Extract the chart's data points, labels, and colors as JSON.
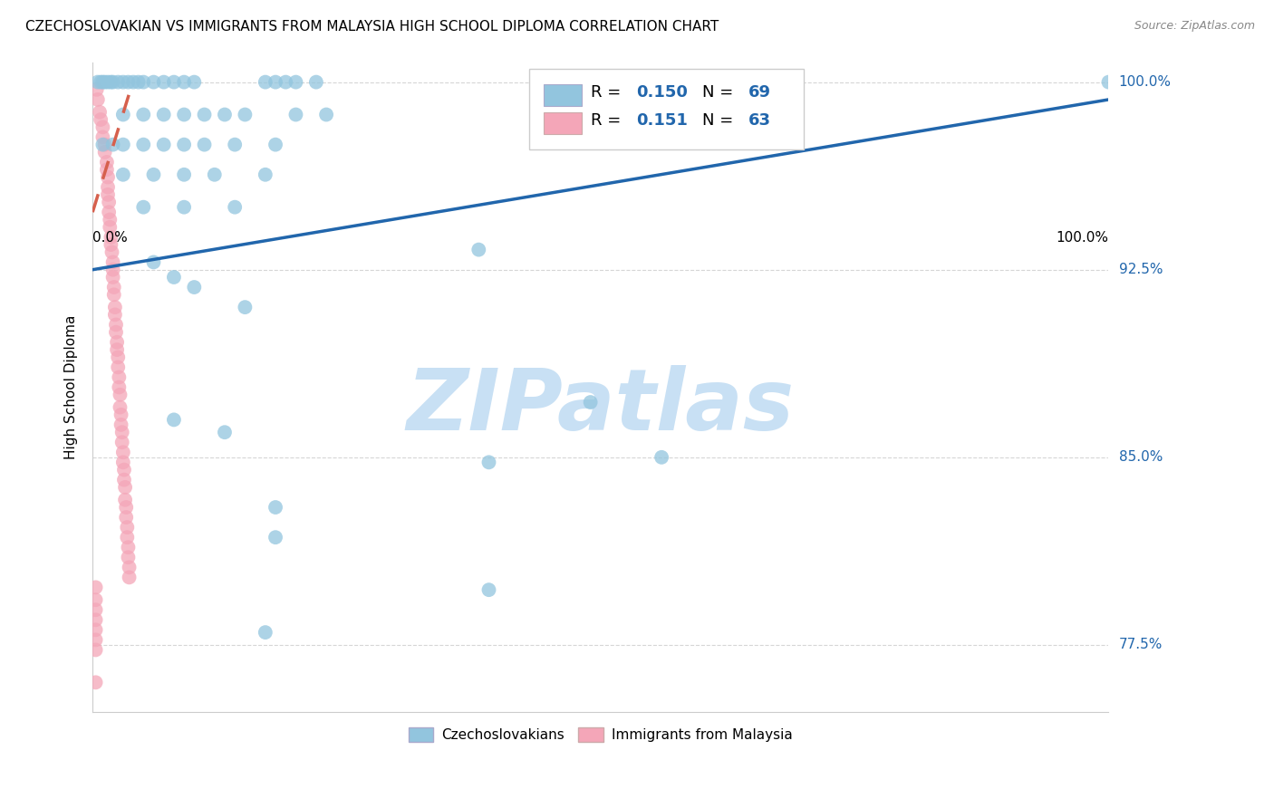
{
  "title": "CZECHOSLOVAKIAN VS IMMIGRANTS FROM MALAYSIA HIGH SCHOOL DIPLOMA CORRELATION CHART",
  "source": "Source: ZipAtlas.com",
  "ylabel": "High School Diploma",
  "ytick_labels": [
    "77.5%",
    "85.0%",
    "92.5%",
    "100.0%"
  ],
  "ytick_values": [
    0.775,
    0.85,
    0.925,
    1.0
  ],
  "legend_blue_label": "Czechoslovakians",
  "legend_pink_label": "Immigrants from Malaysia",
  "blue_color": "#92C5DE",
  "pink_color": "#F4A6B8",
  "trend_blue_color": "#2166AC",
  "trend_pink_color": "#D6604D",
  "watermark_text": "ZIPatlas",
  "watermark_color": "#C8E0F4",
  "blue_scatter": [
    [
      0.005,
      1.0
    ],
    [
      0.008,
      1.0
    ],
    [
      0.01,
      1.0
    ],
    [
      0.012,
      1.0
    ],
    [
      0.015,
      1.0
    ],
    [
      0.018,
      1.0
    ],
    [
      0.02,
      1.0
    ],
    [
      0.025,
      1.0
    ],
    [
      0.03,
      1.0
    ],
    [
      0.035,
      1.0
    ],
    [
      0.04,
      1.0
    ],
    [
      0.045,
      1.0
    ],
    [
      0.05,
      1.0
    ],
    [
      0.06,
      1.0
    ],
    [
      0.07,
      1.0
    ],
    [
      0.08,
      1.0
    ],
    [
      0.09,
      1.0
    ],
    [
      0.1,
      1.0
    ],
    [
      0.17,
      1.0
    ],
    [
      0.18,
      1.0
    ],
    [
      0.19,
      1.0
    ],
    [
      0.2,
      1.0
    ],
    [
      0.22,
      1.0
    ],
    [
      0.03,
      0.987
    ],
    [
      0.05,
      0.987
    ],
    [
      0.07,
      0.987
    ],
    [
      0.09,
      0.987
    ],
    [
      0.11,
      0.987
    ],
    [
      0.13,
      0.987
    ],
    [
      0.15,
      0.987
    ],
    [
      0.2,
      0.987
    ],
    [
      0.23,
      0.987
    ],
    [
      0.01,
      0.975
    ],
    [
      0.02,
      0.975
    ],
    [
      0.03,
      0.975
    ],
    [
      0.05,
      0.975
    ],
    [
      0.07,
      0.975
    ],
    [
      0.09,
      0.975
    ],
    [
      0.11,
      0.975
    ],
    [
      0.14,
      0.975
    ],
    [
      0.18,
      0.975
    ],
    [
      0.03,
      0.963
    ],
    [
      0.06,
      0.963
    ],
    [
      0.09,
      0.963
    ],
    [
      0.12,
      0.963
    ],
    [
      0.17,
      0.963
    ],
    [
      0.05,
      0.95
    ],
    [
      0.09,
      0.95
    ],
    [
      0.14,
      0.95
    ],
    [
      0.38,
      0.933
    ],
    [
      0.06,
      0.928
    ],
    [
      0.08,
      0.922
    ],
    [
      0.1,
      0.918
    ],
    [
      0.15,
      0.91
    ],
    [
      0.49,
      0.872
    ],
    [
      0.08,
      0.865
    ],
    [
      0.13,
      0.86
    ],
    [
      0.56,
      0.85
    ],
    [
      0.39,
      0.848
    ],
    [
      0.18,
      0.83
    ],
    [
      0.18,
      0.818
    ],
    [
      0.39,
      0.797
    ],
    [
      0.17,
      0.78
    ],
    [
      1.0,
      1.0
    ]
  ],
  "pink_scatter": [
    [
      0.004,
      0.997
    ],
    [
      0.005,
      0.993
    ],
    [
      0.007,
      0.988
    ],
    [
      0.008,
      0.985
    ],
    [
      0.01,
      0.982
    ],
    [
      0.01,
      0.978
    ],
    [
      0.012,
      0.975
    ],
    [
      0.012,
      0.972
    ],
    [
      0.014,
      0.968
    ],
    [
      0.014,
      0.965
    ],
    [
      0.015,
      0.962
    ],
    [
      0.015,
      0.958
    ],
    [
      0.015,
      0.955
    ],
    [
      0.016,
      0.952
    ],
    [
      0.016,
      0.948
    ],
    [
      0.017,
      0.945
    ],
    [
      0.017,
      0.942
    ],
    [
      0.018,
      0.938
    ],
    [
      0.018,
      0.935
    ],
    [
      0.019,
      0.932
    ],
    [
      0.02,
      0.928
    ],
    [
      0.02,
      0.925
    ],
    [
      0.02,
      0.922
    ],
    [
      0.021,
      0.918
    ],
    [
      0.021,
      0.915
    ],
    [
      0.022,
      0.91
    ],
    [
      0.022,
      0.907
    ],
    [
      0.023,
      0.903
    ],
    [
      0.023,
      0.9
    ],
    [
      0.024,
      0.896
    ],
    [
      0.024,
      0.893
    ],
    [
      0.025,
      0.89
    ],
    [
      0.025,
      0.886
    ],
    [
      0.026,
      0.882
    ],
    [
      0.026,
      0.878
    ],
    [
      0.027,
      0.875
    ],
    [
      0.027,
      0.87
    ],
    [
      0.028,
      0.867
    ],
    [
      0.028,
      0.863
    ],
    [
      0.029,
      0.86
    ],
    [
      0.029,
      0.856
    ],
    [
      0.03,
      0.852
    ],
    [
      0.03,
      0.848
    ],
    [
      0.031,
      0.845
    ],
    [
      0.031,
      0.841
    ],
    [
      0.032,
      0.838
    ],
    [
      0.032,
      0.833
    ],
    [
      0.033,
      0.83
    ],
    [
      0.033,
      0.826
    ],
    [
      0.034,
      0.822
    ],
    [
      0.034,
      0.818
    ],
    [
      0.035,
      0.814
    ],
    [
      0.035,
      0.81
    ],
    [
      0.036,
      0.806
    ],
    [
      0.036,
      0.802
    ],
    [
      0.003,
      0.798
    ],
    [
      0.003,
      0.793
    ],
    [
      0.003,
      0.789
    ],
    [
      0.003,
      0.785
    ],
    [
      0.003,
      0.781
    ],
    [
      0.003,
      0.777
    ],
    [
      0.003,
      0.773
    ],
    [
      0.003,
      0.76
    ]
  ],
  "blue_trend_x": [
    0.0,
    1.0
  ],
  "blue_trend_y": [
    0.925,
    0.993
  ],
  "pink_trend_x": [
    0.0,
    0.038
  ],
  "pink_trend_y": [
    0.948,
    0.998
  ],
  "xlim": [
    0.0,
    1.0
  ],
  "ylim": [
    0.748,
    1.008
  ],
  "grid_color": "#CCCCCC",
  "spine_color": "#CCCCCC"
}
